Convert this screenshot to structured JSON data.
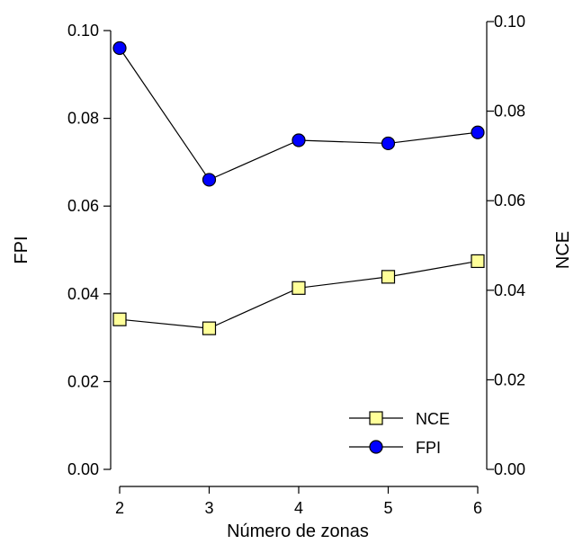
{
  "chart_data": {
    "type": "line",
    "x": [
      2,
      3,
      4,
      5,
      6
    ],
    "xlabel": "Número de zonas",
    "ylabel_left": "FPI",
    "ylabel_right": "NCE",
    "ylim_left": [
      0,
      0.1
    ],
    "ylim_right": [
      0,
      0.1
    ],
    "x_ticks": [
      "2",
      "3",
      "4",
      "5",
      "6"
    ],
    "y_ticks_left": [
      "0.00",
      "0.02",
      "0.04",
      "0.06",
      "0.08",
      "0.10"
    ],
    "y_ticks_right": [
      "0.00",
      "0.02",
      "0.04",
      "0.06",
      "0.08",
      "0.10"
    ],
    "grid": false,
    "legend_position": "bottom-right",
    "series": [
      {
        "name": "NCE",
        "axis": "right",
        "marker": "square",
        "color": "#ffff99",
        "values": [
          0.0335,
          0.0315,
          0.0405,
          0.043,
          0.0465
        ]
      },
      {
        "name": "FPI",
        "axis": "left",
        "marker": "circle",
        "color": "#0000ff",
        "values": [
          0.096,
          0.066,
          0.075,
          0.0743,
          0.0768
        ]
      }
    ]
  }
}
